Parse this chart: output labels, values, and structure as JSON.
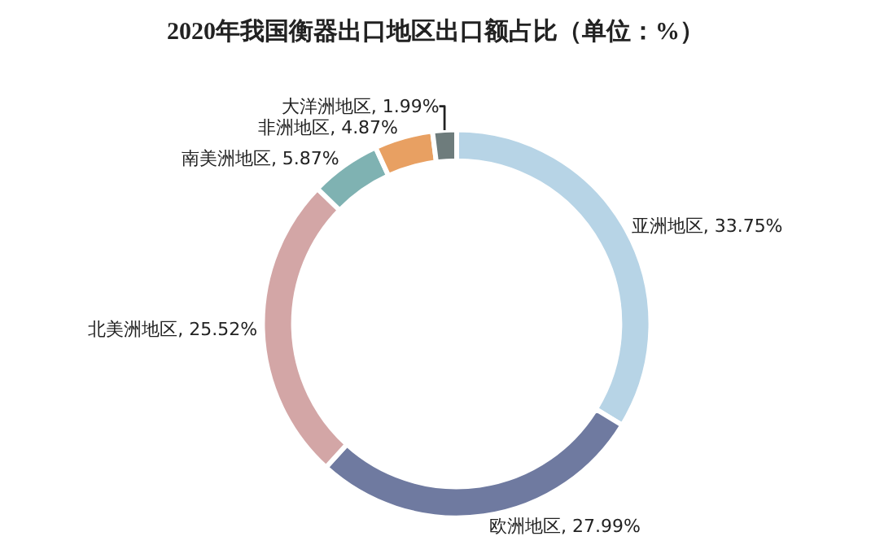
{
  "chart_data": {
    "type": "donut",
    "title": "2020年我国衡器出口地区出口额占比（单位：%）",
    "categories": [
      "亚洲地区",
      "欧洲地区",
      "北美洲地区",
      "南美洲地区",
      "非洲地区",
      "大洋洲地区"
    ],
    "values": [
      33.75,
      27.99,
      25.52,
      5.87,
      4.87,
      1.99
    ],
    "value_labels": [
      "33.75%",
      "27.99%",
      "25.52%",
      "5.87%",
      "4.87%",
      "1.99%"
    ],
    "colors": [
      "#b7d4e6",
      "#6f7aa0",
      "#d3a6a6",
      "#7fb2b2",
      "#e8a062",
      "#6e7c7c"
    ],
    "legend": false
  }
}
